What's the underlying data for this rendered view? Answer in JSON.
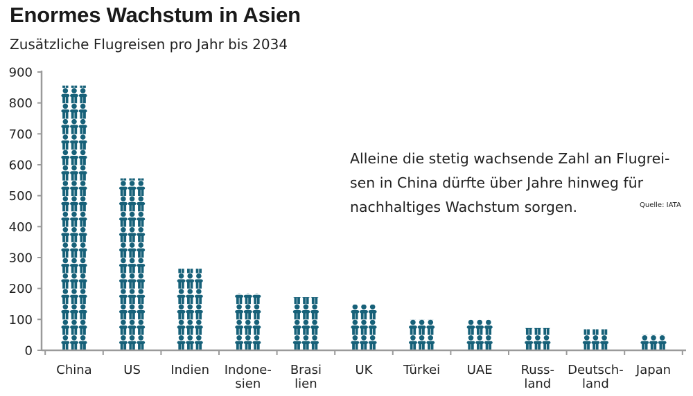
{
  "header": {
    "title": "Enormes Wachstum in Asien",
    "subtitle": "Zusätzliche Flugreisen pro Jahr bis 2034"
  },
  "annotation": {
    "lines": [
      "Alleine die stetig wachsende Zahl an Flugrei-",
      "sen in China dürfte über Jahre hinweg für",
      "nachhaltiges Wachstum sorgen."
    ],
    "source": "Quelle: IATA"
  },
  "colors": {
    "bar": "#176179",
    "axis": "#9a9a9a",
    "text": "#222222"
  },
  "chart_data": {
    "type": "bar",
    "style": "pictogram",
    "icon": "person-icon",
    "title": "",
    "xlabel": "",
    "ylabel": "",
    "ylim": [
      0,
      900
    ],
    "yticks": [
      "0",
      "100",
      "200",
      "300",
      "400",
      "500",
      "600",
      "700",
      "800",
      "900"
    ],
    "grid": false,
    "legend": "none",
    "categories": [
      [
        "China"
      ],
      [
        "US"
      ],
      [
        "Indien"
      ],
      [
        "Indone-",
        "sien"
      ],
      [
        "Brasi",
        "lien"
      ],
      [
        "UK"
      ],
      [
        "Türkei"
      ],
      [
        "UAE"
      ],
      [
        "Russ-",
        "land"
      ],
      [
        "Deutsch-",
        "land"
      ],
      [
        "Japan"
      ]
    ],
    "values": [
      856,
      556,
      264,
      183,
      172,
      148,
      100,
      99,
      72,
      68,
      50
    ]
  }
}
